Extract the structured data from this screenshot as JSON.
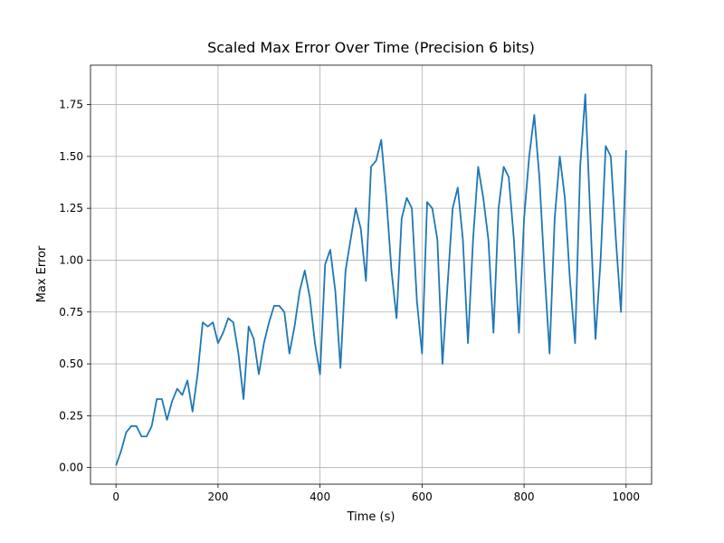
{
  "chart_data": {
    "type": "line",
    "title": "Scaled Max Error Over Time (Precision 6 bits)",
    "x_label": "Time (s)",
    "y_label": "Max Error",
    "color": "#1f77b4",
    "grid": true,
    "xlim": [
      -50,
      1050
    ],
    "ylim": [
      -0.08,
      1.94
    ],
    "xticks": [
      0,
      200,
      400,
      600,
      800,
      1000
    ],
    "yticks": [
      {
        "value": 0,
        "label": "0.00"
      },
      {
        "value": 0.25,
        "label": "0.25"
      },
      {
        "value": 0.5,
        "label": "0.50"
      },
      {
        "value": 0.75,
        "label": "0.75"
      },
      {
        "value": 1,
        "label": "1.00"
      },
      {
        "value": 1.25,
        "label": "1.25"
      },
      {
        "value": 1.5,
        "label": "1.50"
      },
      {
        "value": 1.75,
        "label": "1.75"
      }
    ],
    "x": [
      0,
      10,
      20,
      30,
      40,
      50,
      60,
      70,
      80,
      90,
      100,
      110,
      120,
      130,
      140,
      150,
      160,
      170,
      180,
      190,
      200,
      210,
      220,
      230,
      240,
      250,
      260,
      270,
      280,
      290,
      300,
      310,
      320,
      330,
      340,
      350,
      360,
      370,
      380,
      390,
      400,
      410,
      420,
      430,
      440,
      450,
      460,
      470,
      480,
      490,
      500,
      510,
      520,
      530,
      540,
      550,
      560,
      570,
      580,
      590,
      600,
      610,
      620,
      630,
      640,
      650,
      660,
      670,
      680,
      690,
      700,
      710,
      720,
      730,
      740,
      750,
      760,
      770,
      780,
      790,
      800,
      810,
      820,
      830,
      840,
      850,
      860,
      870,
      880,
      890,
      900,
      910,
      920,
      930,
      940,
      950,
      960,
      970,
      980,
      990,
      1000
    ],
    "values": [
      0.01,
      0.08,
      0.17,
      0.2,
      0.2,
      0.15,
      0.15,
      0.2,
      0.33,
      0.33,
      0.23,
      0.32,
      0.38,
      0.35,
      0.42,
      0.27,
      0.45,
      0.7,
      0.68,
      0.7,
      0.6,
      0.65,
      0.72,
      0.7,
      0.55,
      0.33,
      0.68,
      0.62,
      0.45,
      0.6,
      0.7,
      0.78,
      0.78,
      0.75,
      0.55,
      0.68,
      0.85,
      0.95,
      0.82,
      0.6,
      0.45,
      0.98,
      1.05,
      0.85,
      0.48,
      0.95,
      1.1,
      1.25,
      1.15,
      0.9,
      1.45,
      1.48,
      1.58,
      1.3,
      0.95,
      0.72,
      1.2,
      1.3,
      1.25,
      0.8,
      0.55,
      1.28,
      1.25,
      1.1,
      0.5,
      0.88,
      1.25,
      1.35,
      1.1,
      0.6,
      1.1,
      1.45,
      1.3,
      1.1,
      0.65,
      1.25,
      1.45,
      1.4,
      1.1,
      0.65,
      1.2,
      1.5,
      1.7,
      1.4,
      0.95,
      0.55,
      1.2,
      1.5,
      1.3,
      0.9,
      0.6,
      1.45,
      1.8,
      1.2,
      0.62,
      1.0,
      1.55,
      1.5,
      1.1,
      0.75,
      1.53
    ]
  }
}
